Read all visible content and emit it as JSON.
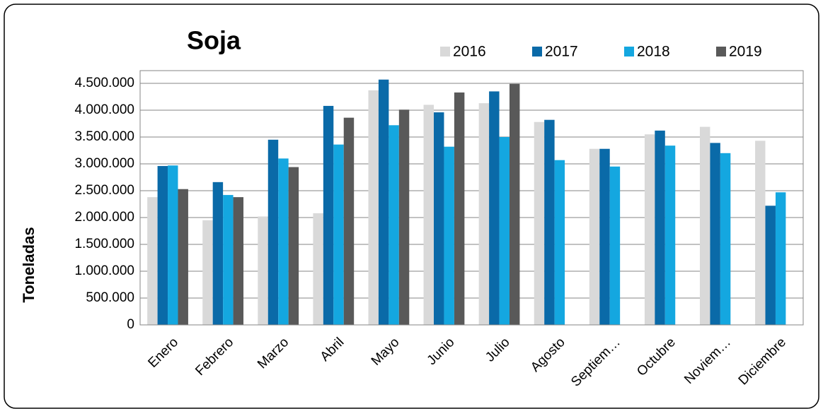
{
  "chart_data": {
    "type": "bar",
    "title": "Soja",
    "y_label": "Toneladas",
    "categories": [
      "Enero",
      "Febrero",
      "Marzo",
      "Abril",
      "Mayo",
      "Junio",
      "Julio",
      "Agosto",
      "Septiem…",
      "Octubre",
      "Noviem…",
      "Diciembre"
    ],
    "series": [
      {
        "name": "2016",
        "color": "#d9d9d9",
        "values": [
          2380000,
          1950000,
          2020000,
          2080000,
          4370000,
          4100000,
          4130000,
          3780000,
          3280000,
          3550000,
          3690000,
          3430000
        ]
      },
      {
        "name": "2017",
        "color": "#0a6aa8",
        "values": [
          2960000,
          2660000,
          3450000,
          4080000,
          4570000,
          3960000,
          4350000,
          3820000,
          3280000,
          3620000,
          3390000,
          2220000
        ]
      },
      {
        "name": "2018",
        "color": "#14a7e0",
        "values": [
          2970000,
          2420000,
          3100000,
          3360000,
          3720000,
          3320000,
          3500000,
          3070000,
          2950000,
          3340000,
          3200000,
          2470000
        ]
      },
      {
        "name": "2019",
        "color": "#595959",
        "values": [
          2530000,
          2380000,
          2940000,
          3860000,
          4010000,
          4330000,
          4490000,
          null,
          null,
          null,
          null,
          null
        ]
      }
    ],
    "ylim": [
      0,
      4737000
    ],
    "yticks": [
      0,
      {
        "value": 500000,
        "label": "500.000"
      },
      {
        "value": 1000000,
        "label": "1.000.000"
      },
      {
        "value": 1500000,
        "label": "1.500.000"
      },
      {
        "value": 2000000,
        "label": "2.000.000"
      },
      {
        "value": 2500000,
        "label": "2.500.000"
      },
      {
        "value": 3000000,
        "label": "3.000.000"
      },
      {
        "value": 3500000,
        "label": "3.500.000"
      },
      {
        "value": 4000000,
        "label": "4.000.000"
      },
      {
        "value": 4500000,
        "label": "4.500.000"
      }
    ],
    "grid": true,
    "legend": "top"
  }
}
